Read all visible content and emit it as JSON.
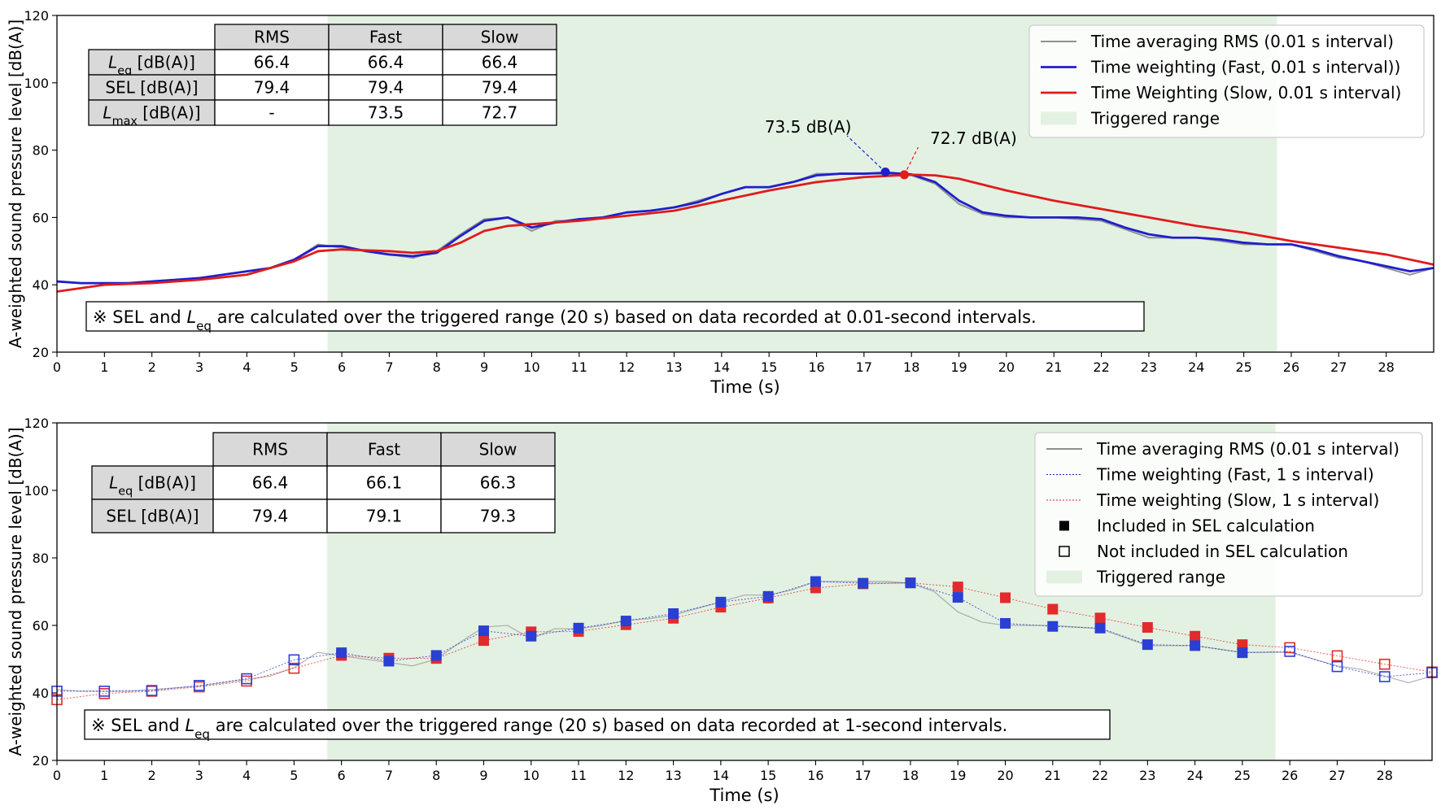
{
  "colors": {
    "rms": "#808080",
    "fast": "#1f1fcc",
    "slow": "#e01b1b",
    "fast_marker": "#2a3fd4",
    "slow_marker": "#e22b2b",
    "triggered": "#e3f1e3",
    "table_header": "#d9d9d9"
  },
  "chart_data": [
    {
      "type": "line",
      "xlabel": "Time (s)",
      "ylabel": "A-weighted sound pressure level [dB(A)]",
      "xlim": [
        0,
        29
      ],
      "ylim": [
        20,
        120
      ],
      "xticks": [
        0,
        1,
        2,
        3,
        4,
        5,
        6,
        7,
        8,
        9,
        10,
        11,
        12,
        13,
        14,
        15,
        16,
        17,
        18,
        19,
        20,
        21,
        22,
        23,
        24,
        25,
        26,
        27,
        28
      ],
      "yticks": [
        20,
        40,
        60,
        80,
        100,
        120
      ],
      "grid": false,
      "legend_position": "top-right",
      "triggered_range": [
        5.7,
        25.7
      ],
      "legend": [
        {
          "label": "Time averaging RMS (0.01 s interval)",
          "kind": "line-thin",
          "color": "rms"
        },
        {
          "label": "Time weighting (Fast, 0.01 s interval))",
          "kind": "line",
          "color": "fast"
        },
        {
          "label": "Time Weighting (Slow, 0.01 s interval)",
          "kind": "line",
          "color": "slow"
        },
        {
          "label": "Triggered range",
          "kind": "patch",
          "color": "triggered"
        }
      ],
      "series": [
        {
          "name": "Time averaging RMS (0.01 s interval)",
          "key": "rms",
          "x": [
            0,
            0.5,
            1,
            1.5,
            2,
            2.5,
            3,
            3.5,
            4,
            4.5,
            5,
            5.5,
            6,
            6.5,
            7,
            7.5,
            8,
            8.5,
            9,
            9.5,
            10,
            10.5,
            11,
            11.5,
            12,
            12.5,
            13,
            13.5,
            14,
            14.5,
            15,
            15.5,
            16,
            16.5,
            17,
            17.5,
            18,
            18.5,
            19,
            19.5,
            20,
            20.5,
            21,
            21.5,
            22,
            22.5,
            23,
            23.5,
            24,
            24.5,
            25,
            25.5,
            26,
            26.5,
            27,
            27.5,
            28,
            28.5,
            29
          ],
          "values": [
            41,
            40.5,
            40.5,
            40.5,
            41,
            41.5,
            42,
            43,
            44,
            45,
            47.5,
            52,
            51,
            50,
            49,
            48,
            50,
            55,
            59.5,
            60,
            56,
            59,
            59,
            60,
            61.5,
            62,
            63,
            65,
            67,
            69,
            69,
            70.5,
            73,
            73,
            73,
            73,
            72.5,
            70,
            64,
            61,
            60,
            60,
            60,
            59.5,
            59,
            56.5,
            54,
            54,
            54,
            53,
            52,
            52,
            52,
            50,
            48,
            47,
            45,
            43,
            45
          ]
        },
        {
          "name": "Time weighting (Fast, 0.01 s interval))",
          "key": "fast",
          "x": [
            0,
            0.5,
            1,
            1.5,
            2,
            2.5,
            3,
            3.5,
            4,
            4.5,
            5,
            5.5,
            6,
            6.5,
            7,
            7.5,
            8,
            8.5,
            9,
            9.5,
            10,
            10.5,
            11,
            11.5,
            12,
            12.5,
            13,
            13.5,
            14,
            14.5,
            15,
            15.5,
            16,
            16.5,
            17,
            17.5,
            18,
            18.5,
            19,
            19.5,
            20,
            20.5,
            21,
            21.5,
            22,
            22.5,
            23,
            23.5,
            24,
            24.5,
            25,
            25.5,
            26,
            26.5,
            27,
            27.5,
            28,
            28.5,
            29
          ],
          "values": [
            41,
            40.5,
            40.5,
            40.5,
            41,
            41.5,
            42,
            43,
            44,
            45,
            47.5,
            51.5,
            51.5,
            50,
            49,
            48.5,
            49.5,
            54.5,
            59,
            60,
            57,
            58.5,
            59.5,
            60,
            61.5,
            62,
            63,
            64.5,
            67,
            69,
            69,
            70.5,
            72.5,
            73,
            73,
            73.3,
            72.8,
            70.5,
            65,
            61.5,
            60.5,
            60,
            60,
            60,
            59.5,
            57,
            55,
            54,
            54,
            53.5,
            52.5,
            52,
            52,
            50.5,
            48.5,
            47,
            45.5,
            44,
            45
          ]
        },
        {
          "name": "Time Weighting (Slow, 0.01 s interval)",
          "key": "slow",
          "x": [
            0,
            1,
            2,
            3,
            4,
            5,
            5.5,
            6,
            7,
            7.5,
            8,
            8.5,
            9,
            9.5,
            10,
            11,
            12,
            13,
            14,
            15,
            16,
            17,
            18,
            18.5,
            19,
            20,
            21,
            22,
            23,
            24,
            25,
            26,
            27,
            28,
            29
          ],
          "values": [
            38,
            40,
            40.5,
            41.5,
            43,
            47,
            50,
            50.5,
            50,
            49.5,
            50,
            52.5,
            56,
            57.5,
            58,
            59,
            60.5,
            62,
            65,
            68,
            70.5,
            72,
            72.7,
            72.5,
            71.5,
            68,
            65,
            62.5,
            60,
            57.5,
            55.5,
            53,
            51,
            49,
            46
          ]
        }
      ],
      "markers": [
        {
          "label": "73.5 dB(A)",
          "x": 17.45,
          "y": 73.5,
          "color": "fast"
        },
        {
          "label": "72.7 dB(A)",
          "x": 17.85,
          "y": 72.7,
          "color": "slow"
        }
      ],
      "table": {
        "headers": [
          "",
          "RMS",
          "Fast",
          "Slow"
        ],
        "rows": [
          {
            "label": "L",
            "sub": "eq",
            "suffix": " [dB(A)]",
            "cells": [
              "66.4",
              "66.4",
              "66.4"
            ]
          },
          {
            "label": "SEL [dB(A)]",
            "sub": "",
            "suffix": "",
            "cells": [
              "79.4",
              "79.4",
              "79.4"
            ]
          },
          {
            "label": "L",
            "sub": "max",
            "suffix": " [dB(A)]",
            "cells": [
              "-",
              "73.5",
              "72.7"
            ]
          }
        ]
      },
      "note": {
        "prefix": "※ SEL and ",
        "l": "L",
        "sub": "eq",
        "suffix": " are calculated over the triggered range (20 s) based on data recorded at 0.01-second intervals."
      }
    },
    {
      "type": "scatter",
      "xlabel": "Time (s)",
      "ylabel": "A-weighted sound pressure level [dB(A)]",
      "xlim": [
        0,
        29
      ],
      "ylim": [
        20,
        120
      ],
      "xticks": [
        0,
        1,
        2,
        3,
        4,
        5,
        6,
        7,
        8,
        9,
        10,
        11,
        12,
        13,
        14,
        15,
        16,
        17,
        18,
        19,
        20,
        21,
        22,
        23,
        24,
        25,
        26,
        27,
        28
      ],
      "yticks": [
        20,
        40,
        60,
        80,
        100,
        120
      ],
      "grid": false,
      "legend_position": "top-right",
      "triggered_range": [
        5.7,
        25.7
      ],
      "legend": [
        {
          "label": "Time averaging RMS (0.01 s interval)",
          "kind": "line-thin",
          "color": "rms"
        },
        {
          "label": "Time weighting (Fast, 1 s interval)",
          "kind": "dotted",
          "color": "fast"
        },
        {
          "label": "Time weighting (Slow, 1 s interval)",
          "kind": "dotted",
          "color": "slow"
        },
        {
          "label": "Included in SEL calculation",
          "kind": "filled-square",
          "color": "#000000"
        },
        {
          "label": "Not included in SEL calculation",
          "kind": "open-square",
          "color": "#000000"
        },
        {
          "label": "Triggered range",
          "kind": "patch",
          "color": "triggered"
        }
      ],
      "series": [
        {
          "name": "Time averaging RMS (0.01 s interval)",
          "key": "rms",
          "x": [
            0,
            0.5,
            1,
            1.5,
            2,
            2.5,
            3,
            3.5,
            4,
            4.5,
            5,
            5.5,
            6,
            6.5,
            7,
            7.5,
            8,
            8.5,
            9,
            9.5,
            10,
            10.5,
            11,
            11.5,
            12,
            12.5,
            13,
            13.5,
            14,
            14.5,
            15,
            15.5,
            16,
            16.5,
            17,
            17.5,
            18,
            18.5,
            19,
            19.5,
            20,
            20.5,
            21,
            21.5,
            22,
            22.5,
            23,
            23.5,
            24,
            24.5,
            25,
            25.5,
            26,
            26.5,
            27,
            27.5,
            28,
            28.5,
            29
          ],
          "values": [
            41,
            40.5,
            40.5,
            40.5,
            41,
            41.5,
            42,
            43,
            44,
            45,
            47.5,
            52,
            51,
            50,
            49,
            48,
            50,
            55,
            59.5,
            60,
            56,
            59,
            59,
            60,
            61.5,
            62,
            63,
            65,
            67,
            69,
            69,
            70.5,
            73,
            73,
            73,
            73,
            72.5,
            70,
            64,
            61,
            60,
            60,
            60,
            59.5,
            59,
            56.5,
            54,
            54,
            54,
            53,
            52,
            52,
            52,
            50,
            48,
            47,
            45,
            43,
            45
          ]
        },
        {
          "name": "Time weighting (Fast, 1 s interval)",
          "key": "fast",
          "x": [
            0,
            1,
            2,
            3,
            4,
            5,
            6,
            7,
            8,
            9,
            10,
            11,
            12,
            13,
            14,
            15,
            16,
            17,
            18,
            19,
            20,
            21,
            22,
            23,
            24,
            25,
            26,
            27,
            28,
            29
          ],
          "values": [
            40.5,
            40.5,
            40.7,
            42.2,
            44.2,
            49.8,
            51.9,
            49.4,
            51.1,
            58.4,
            56.8,
            59.2,
            61.3,
            63.5,
            66.9,
            68.6,
            73,
            72.5,
            72.6,
            68.3,
            60.6,
            59.7,
            59.2,
            54.3,
            54,
            51.9,
            52.3,
            47.8,
            44.8,
            46
          ]
        },
        {
          "name": "Time weighting (Slow, 1 s interval)",
          "key": "slow",
          "x": [
            0,
            1,
            2,
            3,
            4,
            5,
            6,
            7,
            8,
            9,
            10,
            11,
            12,
            13,
            14,
            15,
            16,
            17,
            18,
            19,
            20,
            21,
            22,
            23,
            24,
            25,
            26,
            27,
            28,
            29
          ],
          "values": [
            38,
            39.8,
            40.5,
            41.8,
            43.5,
            47.3,
            51.1,
            50.3,
            50.2,
            55.5,
            58.1,
            58.2,
            60.2,
            62.1,
            65.4,
            68.1,
            71.1,
            72.3,
            72.6,
            71.4,
            68.2,
            64.8,
            62.2,
            59.4,
            56.8,
            54.3,
            53.4,
            51,
            48.5,
            46.2
          ]
        }
      ],
      "table": {
        "headers": [
          "",
          "RMS",
          "Fast",
          "Slow"
        ],
        "rows": [
          {
            "label": "L",
            "sub": "eq",
            "suffix": " [dB(A)]",
            "cells": [
              "66.4",
              "66.1",
              "66.3"
            ]
          },
          {
            "label": "SEL [dB(A)]",
            "sub": "",
            "suffix": "",
            "cells": [
              "79.4",
              "79.1",
              "79.3"
            ]
          }
        ]
      },
      "note": {
        "prefix": "※ SEL and ",
        "l": "L",
        "sub": "eq",
        "suffix": " are calculated over the triggered range (20 s) based on data recorded at 1-second intervals."
      }
    }
  ]
}
